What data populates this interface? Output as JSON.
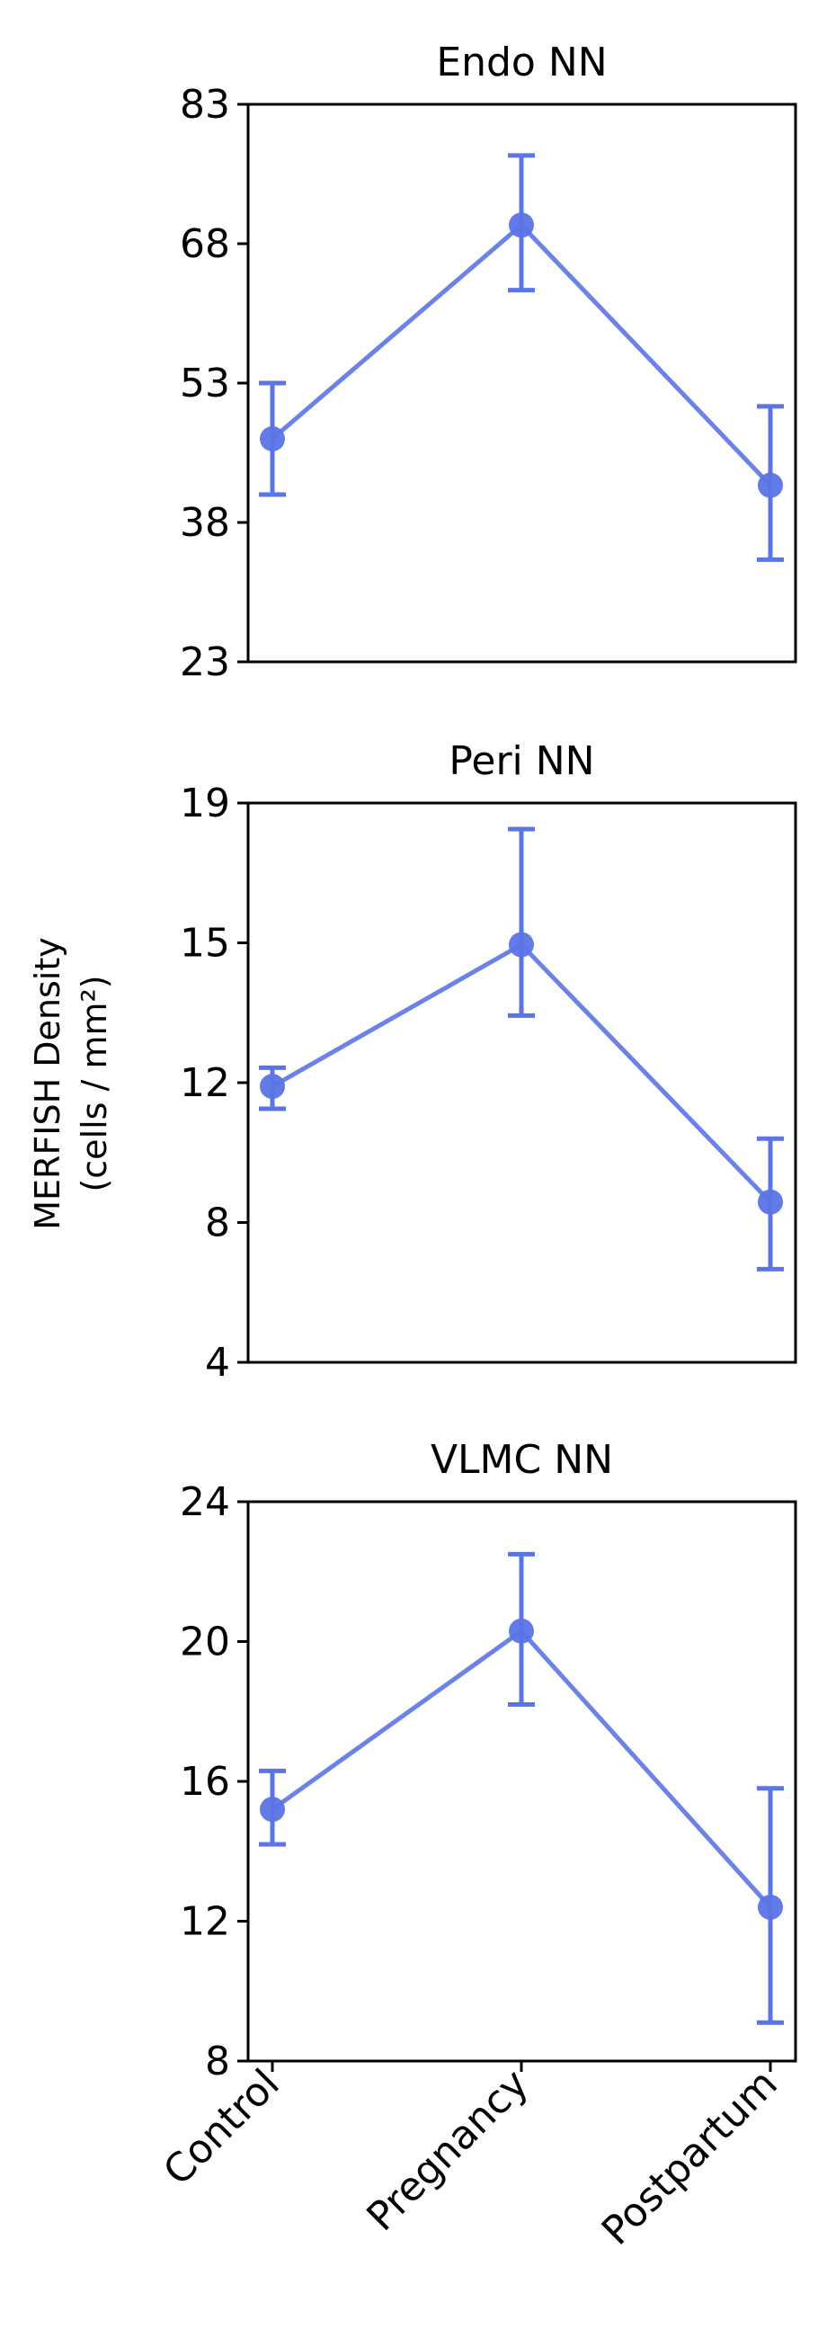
{
  "chart_data": [
    {
      "type": "line",
      "title": "Endo NN",
      "categories": [
        "Control",
        "Pregnancy",
        "Postpartum"
      ],
      "series": [
        {
          "values": [
            47.0,
            70.0,
            42.0
          ],
          "error_low": [
            41.0,
            63.0,
            34.0
          ],
          "error_high": [
            53.0,
            77.5,
            50.5
          ]
        }
      ],
      "ylim": [
        23,
        83
      ],
      "yticks": [
        "23",
        "38",
        "53",
        "68",
        "83"
      ],
      "color": "#5b74e6"
    },
    {
      "type": "line",
      "title": "Peri NN",
      "categories": [
        "Control",
        "Pregnancy",
        "Postpartum"
      ],
      "series": [
        {
          "values": [
            11.4,
            15.2,
            8.3
          ],
          "error_low": [
            10.8,
            13.3,
            6.5
          ],
          "error_high": [
            11.9,
            18.3,
            10.0
          ]
        }
      ],
      "ylim": [
        4,
        19
      ],
      "yticks": [
        "4",
        "8",
        "12",
        "15",
        "19"
      ],
      "color": "#5b74e6"
    },
    {
      "type": "line",
      "title": "VLMC NN",
      "categories": [
        "Control",
        "Pregnancy",
        "Postpartum"
      ],
      "series": [
        {
          "values": [
            15.2,
            20.3,
            12.4
          ],
          "error_low": [
            14.2,
            18.2,
            9.1
          ],
          "error_high": [
            16.3,
            22.5,
            15.8
          ]
        }
      ],
      "ylim": [
        8,
        24
      ],
      "yticks": [
        "8",
        "12",
        "16",
        "20",
        "24"
      ],
      "color": "#5b74e6"
    }
  ],
  "shared_ylabel_line1": "MERFISH Density",
  "shared_ylabel_line2": "(cells / mm²)",
  "xtick_labels": [
    "Control",
    "Pregnancy",
    "Postpartum"
  ]
}
